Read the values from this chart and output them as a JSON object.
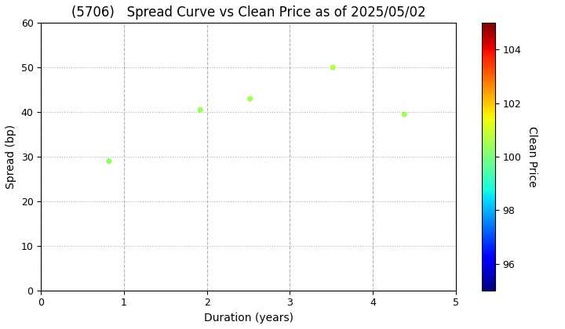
{
  "title": "(5706)   Spread Curve vs Clean Price as of 2025/05/02",
  "xlabel": "Duration (years)",
  "ylabel": "Spread (bp)",
  "colorbar_label": "Clean Price",
  "points": [
    {
      "duration": 0.82,
      "spread": 29.0,
      "clean_price": 100.3
    },
    {
      "duration": 1.92,
      "spread": 40.5,
      "clean_price": 100.4
    },
    {
      "duration": 2.52,
      "spread": 43.0,
      "clean_price": 100.5
    },
    {
      "duration": 3.52,
      "spread": 50.0,
      "clean_price": 100.6
    },
    {
      "duration": 4.38,
      "spread": 39.5,
      "clean_price": 100.4
    }
  ],
  "xlim": [
    0,
    5
  ],
  "ylim": [
    0,
    60
  ],
  "xticks": [
    0,
    1,
    2,
    3,
    4,
    5
  ],
  "yticks": [
    0,
    10,
    20,
    30,
    40,
    50,
    60
  ],
  "cmap": "jet",
  "clim": [
    95,
    105
  ],
  "cticks": [
    96,
    98,
    100,
    102,
    104
  ],
  "marker_size": 18,
  "grid_color": "#b0b0b0",
  "background_color": "#ffffff",
  "title_fontsize": 12,
  "label_fontsize": 10,
  "figsize": [
    7.2,
    4.2
  ],
  "dpi": 100
}
